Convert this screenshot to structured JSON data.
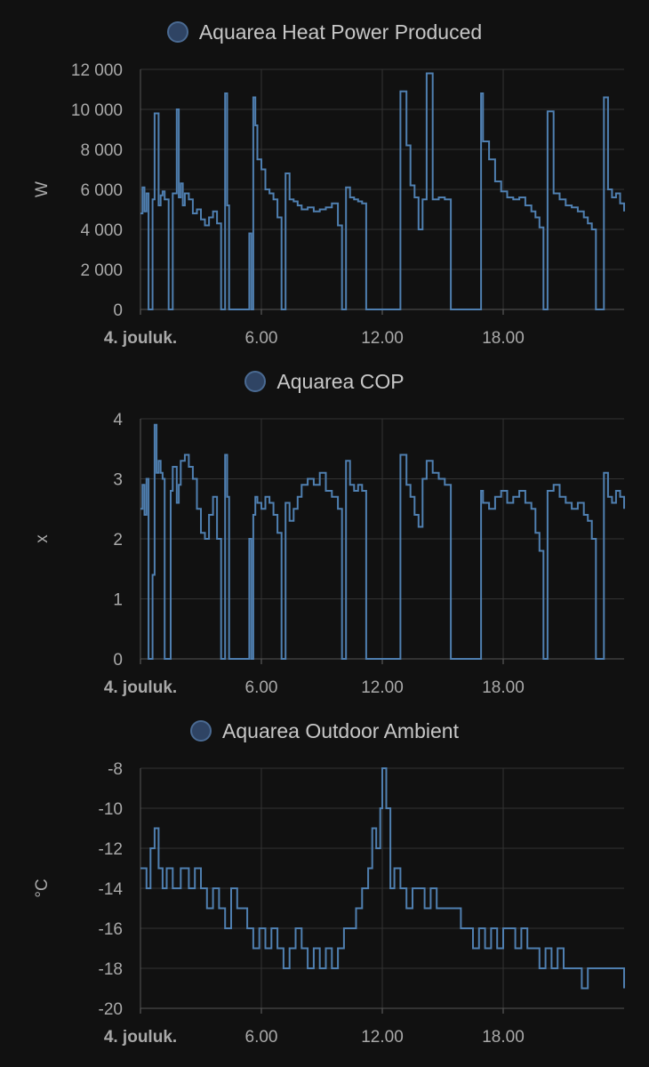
{
  "colors": {
    "background": "#111111",
    "series": "#4f7fb0",
    "grid": "#333333",
    "legend_dot": "#2f4464"
  },
  "chart_data": [
    {
      "type": "line",
      "title": "",
      "xlabel": "",
      "ylabel": "W",
      "legend": "Aquarea Heat Power Produced",
      "ylim": [
        0,
        12000
      ],
      "xlim": [
        0,
        24
      ],
      "yticks": [
        "0",
        "2 000",
        "4 000",
        "6 000",
        "8 000",
        "10 000",
        "12 000"
      ],
      "xticks": [
        "4. jouluk.",
        "6.00",
        "12.00",
        "18.00"
      ],
      "grid": true,
      "series": [
        {
          "x": [
            0,
            0.1,
            0.2,
            0.3,
            0.4,
            0.5,
            0.6,
            0.7,
            0.9,
            1.0,
            1.1,
            1.2,
            1.4,
            1.5,
            1.6,
            1.8,
            1.9,
            2.0,
            2.1,
            2.2,
            2.4,
            2.6,
            2.8,
            3.0,
            3.2,
            3.4,
            3.6,
            3.8,
            4.0,
            4.1,
            4.2,
            4.3,
            4.4,
            4.6,
            4.8,
            5.0,
            5.2,
            5.4,
            5.5,
            5.6,
            5.7,
            5.8,
            6.0,
            6.2,
            6.4,
            6.6,
            6.8,
            7.0,
            7.2,
            7.4,
            7.6,
            7.8,
            8.0,
            8.3,
            8.6,
            8.9,
            9.2,
            9.5,
            9.8,
            10.0,
            10.2,
            10.4,
            10.6,
            10.8,
            11.0,
            11.2,
            11.5,
            11.8,
            12.0,
            12.3,
            12.6,
            12.9,
            13.2,
            13.4,
            13.6,
            13.8,
            14.0,
            14.2,
            14.5,
            14.8,
            15.1,
            15.4,
            15.7,
            16.0,
            16.3,
            16.5,
            16.7,
            16.9,
            17.0,
            17.3,
            17.6,
            17.9,
            18.2,
            18.5,
            18.8,
            19.1,
            19.4,
            19.6,
            19.8,
            20.0,
            20.2,
            20.5,
            20.8,
            21.1,
            21.4,
            21.7,
            22.0,
            22.2,
            22.4,
            22.6,
            22.8,
            23.0,
            23.2,
            23.4,
            23.6,
            23.8,
            24.0
          ],
          "y": [
            4800,
            6100,
            4900,
            5800,
            0,
            0,
            5500,
            9800,
            5200,
            5700,
            5900,
            5500,
            0,
            0,
            5800,
            10000,
            5600,
            6300,
            5200,
            5800,
            5500,
            4800,
            5000,
            4500,
            4200,
            4600,
            4900,
            4300,
            0,
            0,
            10800,
            5200,
            0,
            0,
            0,
            0,
            0,
            3800,
            0,
            10600,
            9200,
            7500,
            7000,
            6000,
            5800,
            5500,
            4600,
            0,
            6800,
            5500,
            5400,
            5200,
            5000,
            5100,
            4900,
            5000,
            5100,
            5300,
            4200,
            0,
            6100,
            5600,
            5500,
            5400,
            5300,
            0,
            0,
            0,
            0,
            0,
            0,
            10900,
            8200,
            6200,
            5600,
            4000,
            5500,
            11800,
            5500,
            5600,
            5500,
            0,
            0,
            0,
            0,
            0,
            0,
            10800,
            8400,
            7500,
            6400,
            5900,
            5600,
            5500,
            5600,
            5200,
            4900,
            4600,
            4100,
            0,
            9900,
            5800,
            5500,
            5200,
            5100,
            4900,
            4600,
            4300,
            4000,
            0,
            0,
            10600,
            6000,
            5600,
            5800,
            5300,
            4900
          ]
        }
      ]
    },
    {
      "type": "line",
      "title": "",
      "xlabel": "",
      "ylabel": "x",
      "legend": "Aquarea COP",
      "ylim": [
        0,
        4
      ],
      "xlim": [
        0,
        24
      ],
      "yticks": [
        "0",
        "1",
        "2",
        "3",
        "4"
      ],
      "xticks": [
        "4. jouluk.",
        "6.00",
        "12.00",
        "18.00"
      ],
      "grid": true,
      "series": [
        {
          "x": [
            0,
            0.1,
            0.2,
            0.3,
            0.4,
            0.5,
            0.6,
            0.7,
            0.8,
            0.9,
            1.0,
            1.1,
            1.2,
            1.4,
            1.5,
            1.6,
            1.8,
            1.9,
            2.0,
            2.2,
            2.4,
            2.6,
            2.8,
            3.0,
            3.2,
            3.4,
            3.6,
            3.8,
            4.0,
            4.1,
            4.2,
            4.3,
            4.4,
            4.6,
            4.8,
            5.0,
            5.2,
            5.4,
            5.5,
            5.6,
            5.7,
            5.8,
            6.0,
            6.2,
            6.4,
            6.6,
            6.8,
            7.0,
            7.2,
            7.4,
            7.6,
            7.8,
            8.0,
            8.3,
            8.6,
            8.9,
            9.2,
            9.5,
            9.8,
            10.0,
            10.2,
            10.4,
            10.6,
            10.8,
            11.0,
            11.2,
            11.5,
            11.8,
            12.0,
            12.3,
            12.6,
            12.9,
            13.2,
            13.4,
            13.6,
            13.8,
            14.0,
            14.2,
            14.5,
            14.8,
            15.1,
            15.4,
            15.7,
            16.0,
            16.3,
            16.5,
            16.7,
            16.9,
            17.0,
            17.3,
            17.6,
            17.9,
            18.2,
            18.5,
            18.8,
            19.1,
            19.4,
            19.6,
            19.8,
            20.0,
            20.2,
            20.5,
            20.8,
            21.1,
            21.4,
            21.7,
            22.0,
            22.2,
            22.4,
            22.6,
            22.8,
            23.0,
            23.2,
            23.4,
            23.6,
            23.8,
            24.0
          ],
          "y": [
            2.5,
            2.9,
            2.4,
            3.0,
            0,
            0,
            1.4,
            3.9,
            3.1,
            3.3,
            3.1,
            3.0,
            0,
            0,
            2.8,
            3.2,
            2.6,
            2.9,
            3.3,
            3.4,
            3.2,
            3.0,
            2.5,
            2.1,
            2.0,
            2.4,
            2.7,
            2.0,
            0,
            0,
            3.4,
            2.7,
            0,
            0,
            0,
            0,
            0,
            2.0,
            0,
            2.4,
            2.7,
            2.6,
            2.5,
            2.7,
            2.6,
            2.4,
            2.1,
            0,
            2.6,
            2.3,
            2.5,
            2.7,
            2.9,
            3.0,
            2.9,
            3.1,
            2.8,
            2.7,
            2.5,
            0,
            3.3,
            2.9,
            2.8,
            2.9,
            2.8,
            0,
            0,
            0,
            0,
            0,
            0,
            3.4,
            2.9,
            2.7,
            2.4,
            2.2,
            3.0,
            3.3,
            3.1,
            3.0,
            2.9,
            0,
            0,
            0,
            0,
            0,
            0,
            2.8,
            2.6,
            2.5,
            2.7,
            2.8,
            2.6,
            2.7,
            2.8,
            2.6,
            2.5,
            2.1,
            1.8,
            0,
            2.8,
            2.9,
            2.7,
            2.6,
            2.5,
            2.6,
            2.4,
            2.3,
            2.0,
            0,
            0,
            3.1,
            2.7,
            2.6,
            2.8,
            2.7,
            2.5
          ]
        }
      ]
    },
    {
      "type": "line",
      "title": "",
      "xlabel": "",
      "ylabel": "°C",
      "legend": "Aquarea Outdoor Ambient",
      "ylim": [
        -20,
        -8
      ],
      "xlim": [
        0,
        24
      ],
      "yticks": [
        "-20",
        "-18",
        "-16",
        "-14",
        "-12",
        "-10",
        "-8"
      ],
      "xticks": [
        "4. jouluk.",
        "6.00",
        "12.00",
        "18.00"
      ],
      "grid": true,
      "series": [
        {
          "x": [
            0,
            0.3,
            0.5,
            0.7,
            0.9,
            1.1,
            1.3,
            1.6,
            2.0,
            2.4,
            2.7,
            3.0,
            3.3,
            3.6,
            3.9,
            4.2,
            4.5,
            4.8,
            5.0,
            5.3,
            5.6,
            5.9,
            6.2,
            6.5,
            6.8,
            7.1,
            7.4,
            7.7,
            8.0,
            8.3,
            8.6,
            8.9,
            9.2,
            9.5,
            9.8,
            10.1,
            10.4,
            10.7,
            11.0,
            11.3,
            11.5,
            11.7,
            11.9,
            12.0,
            12.2,
            12.4,
            12.6,
            12.9,
            13.2,
            13.5,
            13.8,
            14.1,
            14.4,
            14.7,
            15.0,
            15.3,
            15.6,
            15.9,
            16.2,
            16.5,
            16.8,
            17.1,
            17.4,
            17.7,
            18.0,
            18.3,
            18.6,
            18.9,
            19.2,
            19.5,
            19.8,
            20.1,
            20.4,
            20.7,
            21.0,
            21.3,
            21.6,
            21.9,
            22.2,
            22.5,
            22.8,
            23.1,
            23.4,
            23.7,
            24.0
          ],
          "y": [
            -13,
            -14,
            -12,
            -11,
            -13,
            -14,
            -13,
            -14,
            -13,
            -14,
            -13,
            -14,
            -15,
            -14,
            -15,
            -16,
            -14,
            -15,
            -15,
            -16,
            -17,
            -16,
            -17,
            -16,
            -17,
            -18,
            -17,
            -16,
            -17,
            -18,
            -17,
            -18,
            -17,
            -18,
            -17,
            -16,
            -16,
            -15,
            -14,
            -13,
            -11,
            -12,
            -10,
            -8,
            -10,
            -14,
            -13,
            -14,
            -15,
            -14,
            -14,
            -15,
            -14,
            -15,
            -15,
            -15,
            -15,
            -16,
            -16,
            -17,
            -16,
            -17,
            -16,
            -17,
            -16,
            -16,
            -17,
            -16,
            -17,
            -17,
            -18,
            -17,
            -18,
            -17,
            -18,
            -18,
            -18,
            -19,
            -18,
            -18,
            -18,
            -18,
            -18,
            -18,
            -19
          ]
        }
      ]
    }
  ]
}
